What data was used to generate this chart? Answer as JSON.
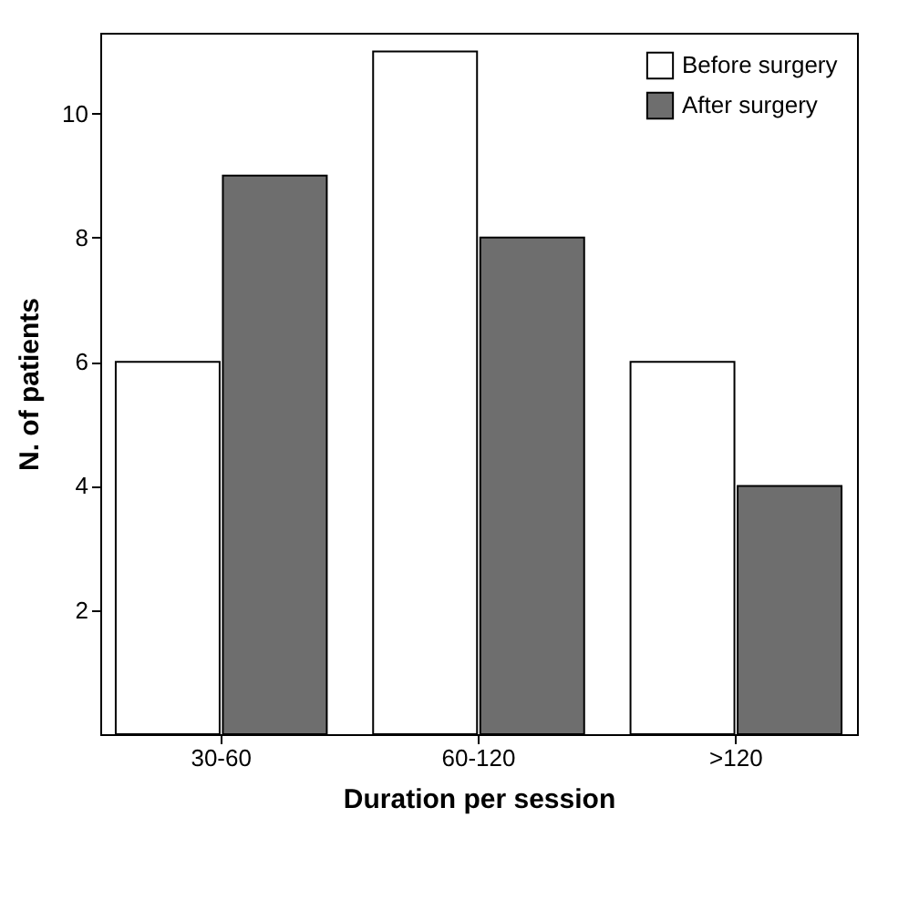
{
  "chart_data": {
    "type": "bar",
    "xlabel": "Duration per session",
    "ylabel": "N. of patients",
    "categories": [
      "30-60",
      "60-120",
      ">120"
    ],
    "series": [
      {
        "name": "Before surgery",
        "color": "#ffffff",
        "values": [
          6,
          11,
          6
        ]
      },
      {
        "name": "After surgery",
        "color": "#6e6e6e",
        "values": [
          9,
          8,
          4
        ]
      }
    ],
    "ylim": [
      0,
      11.3
    ],
    "yticks": [
      2,
      4,
      6,
      8,
      10
    ],
    "grid": false,
    "legend": "top right"
  }
}
